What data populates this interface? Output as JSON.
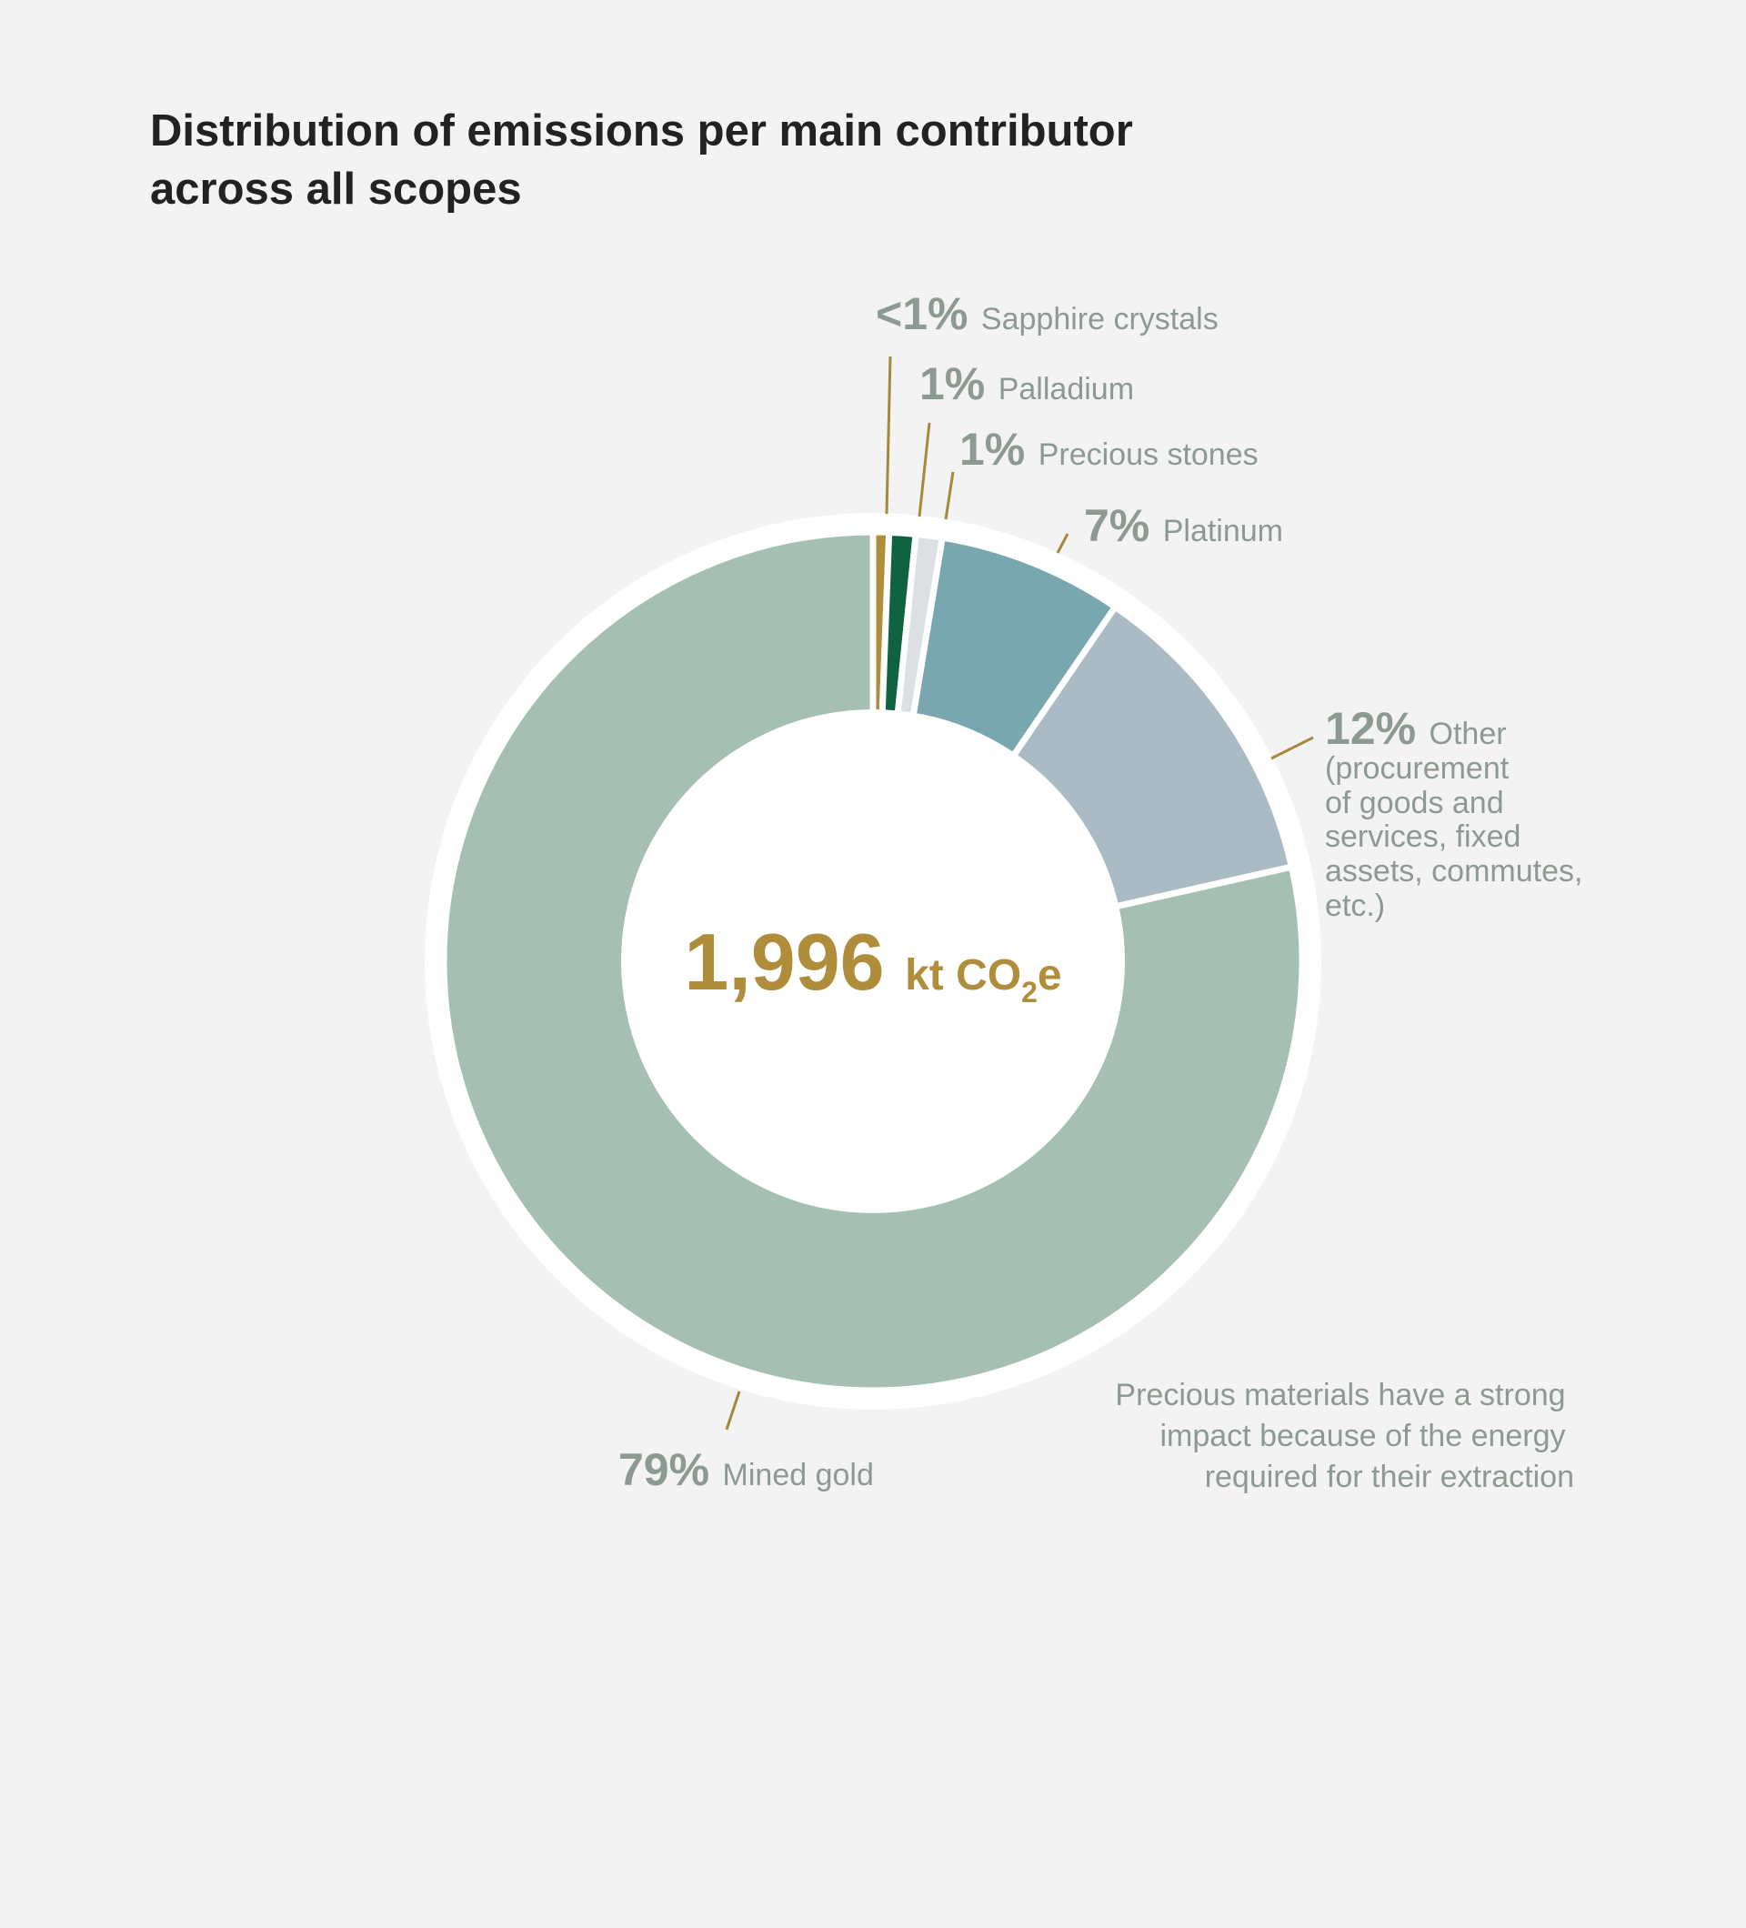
{
  "chart_data": {
    "type": "pie",
    "title": "Distribution of emissions per main contributor across all scopes",
    "title_lines": [
      "Distribution of emissions per main contributor",
      "across all scopes"
    ],
    "center_label": {
      "value": "1,996",
      "unit": "kt CO",
      "subscript": "2",
      "suffix": "e"
    },
    "slices": [
      {
        "label": "Sapphire crystals",
        "pct_label": "<1%",
        "value": 0.6,
        "color": "#b08d3a"
      },
      {
        "label": "Palladium",
        "pct_label": "1%",
        "value": 1,
        "color": "#0f6340"
      },
      {
        "label": "Precious stones",
        "pct_label": "1%",
        "value": 1,
        "color": "#dde0e3"
      },
      {
        "label": "Platinum",
        "pct_label": "7%",
        "value": 7,
        "color": "#79a7b0"
      },
      {
        "label": "Other",
        "label_lines": [
          "Other",
          "(procurement",
          "of goods and",
          "services, fixed",
          "assets, commutes,",
          "etc.)"
        ],
        "pct_label": "12%",
        "value": 12,
        "color": "#aabbc5"
      },
      {
        "label": "Mined gold",
        "pct_label": "79%",
        "value": 79,
        "color": "#a5bfb2"
      }
    ],
    "annotation": [
      "Precious materials have a strong",
      "impact because of the energy",
      "required for their extraction"
    ],
    "leader_color": "#a8883a"
  }
}
